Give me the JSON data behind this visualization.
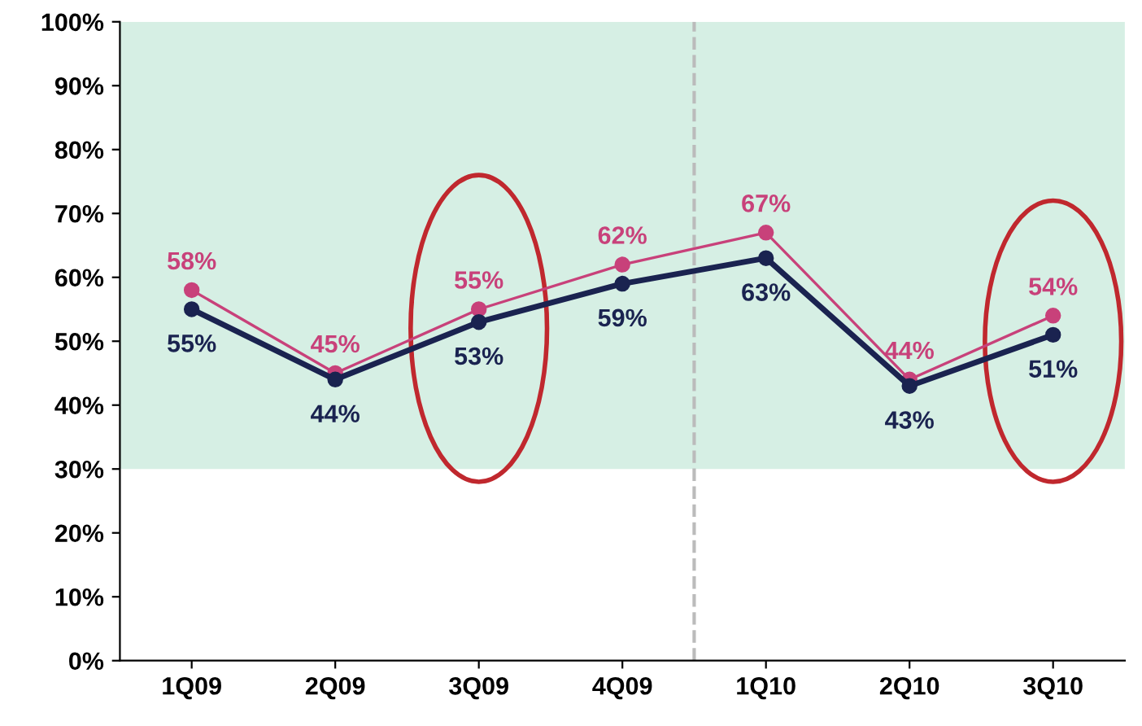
{
  "chart_data": {
    "type": "line",
    "categories": [
      "1Q09",
      "2Q09",
      "3Q09",
      "4Q09",
      "1Q10",
      "2Q10",
      "3Q10"
    ],
    "series": [
      {
        "color": "#c8417a",
        "values": [
          58,
          45,
          55,
          62,
          67,
          44,
          54
        ],
        "value_labels": [
          "58%",
          "45%",
          "55%",
          "62%",
          "67%",
          "44%",
          "54%"
        ]
      },
      {
        "color": "#1a2350",
        "values": [
          55,
          44,
          53,
          59,
          63,
          43,
          51
        ],
        "value_labels": [
          "55%",
          "44%",
          "53%",
          "59%",
          "63%",
          "43%",
          "51%"
        ]
      }
    ],
    "ylim": [
      0,
      100
    ],
    "yticks": [
      {
        "value": 0,
        "label": "0%"
      },
      {
        "value": 10,
        "label": "10%"
      },
      {
        "value": 20,
        "label": "20%"
      },
      {
        "value": 30,
        "label": "30%"
      },
      {
        "value": 40,
        "label": "40%"
      },
      {
        "value": 50,
        "label": "50%"
      },
      {
        "value": 60,
        "label": "60%"
      },
      {
        "value": 70,
        "label": "70%"
      },
      {
        "value": 80,
        "label": "80%"
      },
      {
        "value": 90,
        "label": "90%"
      },
      {
        "value": 100,
        "label": "100%"
      }
    ],
    "bands": [
      {
        "axis": "y",
        "from": 30,
        "to": 100,
        "color": "#d6efe4"
      }
    ],
    "marker": "circle",
    "line_style": "solid",
    "grid": false,
    "legend": false
  }
}
